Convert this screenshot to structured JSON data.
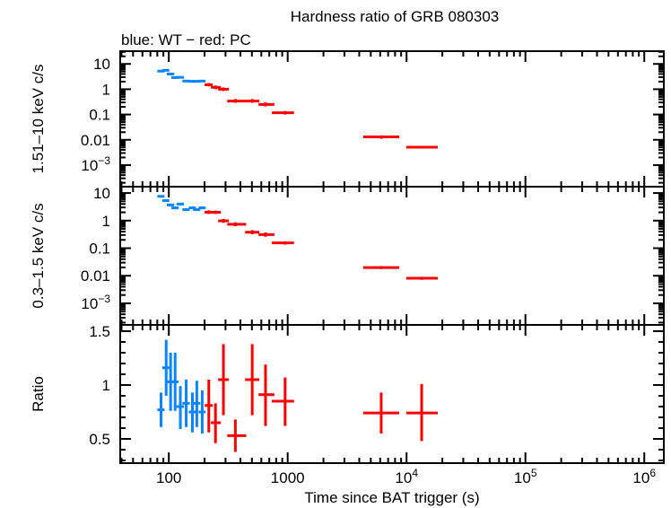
{
  "title": "Hardness ratio of GRB 080303",
  "subtitle": "blue: WT − red: PC",
  "colors": {
    "WT": "#0a84ff",
    "PC": "#ff0000",
    "axes": "#000000"
  },
  "chart_data": [
    {
      "type": "scatter",
      "ylabel": "1.51–10 keV c/s",
      "yscale": "log",
      "ylim": [
        0.00014,
        32
      ],
      "xscale": "log",
      "xlim": [
        39,
        1460000
      ],
      "yticks": [
        10,
        1,
        0.1,
        0.01,
        0.001
      ],
      "ytick_labels": [
        "10",
        "1",
        "0.1",
        "0.01",
        "10^−3"
      ],
      "series": [
        {
          "mode": "WT",
          "color": "#0a84ff",
          "points": [
            [
              86,
              80,
              92,
              5.2,
              4.7,
              5.7
            ],
            [
              95,
              88,
              101,
              5.6,
              5.1,
              6.1
            ],
            [
              103.5,
              96,
              111,
              4.0,
              3.6,
              4.4
            ],
            [
              113,
              105,
              121,
              2.9,
              2.6,
              3.2
            ],
            [
              125,
              116,
              134,
              2.95,
              2.7,
              3.2
            ],
            [
              140,
              130,
              150,
              2.1,
              1.9,
              2.3
            ],
            [
              158,
              147,
              169,
              2.05,
              1.85,
              2.25
            ],
            [
              172,
              160,
              184,
              2.05,
              1.85,
              2.25
            ],
            [
              191,
              178,
              204,
              2.1,
              1.9,
              2.3
            ]
          ]
        },
        {
          "mode": "PC",
          "color": "#ff0000",
          "points": [
            [
              217,
              200,
              234,
              1.5,
              1.3,
              1.75
            ],
            [
              247,
              226,
              274,
              1.19,
              1.0,
              1.4
            ],
            [
              288,
              260,
              320,
              1.0,
              0.85,
              1.18
            ],
            [
              363,
              310,
              447,
              0.34,
              0.29,
              0.41
            ],
            [
              503,
              438,
              577,
              0.34,
              0.29,
              0.41
            ],
            [
              651,
              568,
              773,
              0.25,
              0.21,
              0.3
            ],
            [
              951,
              736,
              1130,
              0.117,
              0.1,
              0.137
            ],
            [
              6120,
              4320,
              8670,
              0.013,
              0.011,
              0.015
            ],
            [
              13400,
              9950,
              18300,
              0.0051,
              0.0045,
              0.0058
            ]
          ]
        }
      ]
    },
    {
      "type": "scatter",
      "ylabel": "0.3–1.5 keV c/s",
      "yscale": "log",
      "ylim": [
        0.000165,
        17
      ],
      "xscale": "log",
      "xlim": [
        39,
        1460000
      ],
      "yticks": [
        10,
        1,
        0.1,
        0.01,
        0.001
      ],
      "ytick_labels": [
        "10",
        "1",
        "0.1",
        "0.01",
        "10^−3"
      ],
      "series": [
        {
          "mode": "WT",
          "color": "#0a84ff",
          "points": [
            [
              86,
              80,
              92,
              7.6,
              6.9,
              8.3
            ],
            [
              95,
              88,
              101,
              5.3,
              4.8,
              5.8
            ],
            [
              103.5,
              96,
              111,
              3.7,
              3.3,
              4.1
            ],
            [
              113,
              105,
              121,
              2.9,
              2.6,
              3.2
            ],
            [
              125,
              116,
              134,
              4.0,
              3.6,
              4.4
            ],
            [
              140,
              130,
              150,
              2.5,
              2.25,
              2.75
            ],
            [
              158,
              147,
              169,
              2.9,
              2.6,
              3.2
            ],
            [
              172,
              160,
              184,
              2.5,
              2.25,
              2.75
            ],
            [
              191,
              178,
              204,
              2.9,
              2.6,
              3.2
            ]
          ]
        },
        {
          "mode": "PC",
          "color": "#ff0000",
          "points": [
            [
              217,
              200,
              234,
              2.02,
              1.75,
              2.35
            ],
            [
              247,
              226,
              274,
              2.0,
              1.75,
              2.3
            ],
            [
              288,
              260,
              320,
              0.98,
              0.83,
              1.15
            ],
            [
              363,
              310,
              447,
              0.74,
              0.63,
              0.87
            ],
            [
              503,
              438,
              577,
              0.38,
              0.32,
              0.45
            ],
            [
              651,
              568,
              773,
              0.31,
              0.26,
              0.37
            ],
            [
              951,
              736,
              1130,
              0.155,
              0.135,
              0.178
            ],
            [
              6120,
              4320,
              8670,
              0.0198,
              0.0175,
              0.0225
            ],
            [
              13400,
              9950,
              18300,
              0.0081,
              0.0071,
              0.0092
            ]
          ]
        }
      ]
    },
    {
      "type": "scatter",
      "ylabel": "Ratio",
      "yscale": "linear",
      "ylim": [
        0.275,
        1.558
      ],
      "xscale": "log",
      "xlim": [
        39,
        1460000
      ],
      "xlabel": "Time since BAT trigger (s)",
      "xticks": [
        100,
        1000,
        10000,
        100000,
        1000000
      ],
      "xtick_labels": [
        "100",
        "1000",
        "10^4",
        "10^5",
        "10^6"
      ],
      "yticks": [
        1.5,
        1,
        0.5
      ],
      "ytick_labels": [
        "1.5",
        "1",
        "0.5"
      ],
      "series": [
        {
          "mode": "WT",
          "color": "#0a84ff",
          "points": [
            [
              86,
              80,
              92,
              0.77,
              0.61,
              0.93
            ],
            [
              95,
              88,
              101,
              1.16,
              0.9,
              1.42
            ],
            [
              103.5,
              96,
              111,
              1.03,
              0.76,
              1.3
            ],
            [
              113,
              105,
              121,
              1.03,
              0.76,
              1.3
            ],
            [
              125,
              116,
              134,
              0.8,
              0.59,
              0.99
            ],
            [
              140,
              130,
              150,
              0.83,
              0.61,
              1.05
            ],
            [
              158,
              147,
              169,
              0.75,
              0.56,
              0.93
            ],
            [
              172,
              160,
              184,
              0.83,
              0.61,
              1.04
            ],
            [
              191,
              178,
              204,
              0.75,
              0.55,
              0.95
            ]
          ]
        },
        {
          "mode": "PC",
          "color": "#ff0000",
          "points": [
            [
              217,
              200,
              234,
              0.81,
              0.56,
              1.05
            ],
            [
              247,
              226,
              274,
              0.65,
              0.46,
              0.83
            ],
            [
              288,
              260,
              320,
              1.05,
              0.72,
              1.38
            ],
            [
              363,
              310,
              447,
              0.53,
              0.38,
              0.68
            ],
            [
              503,
              438,
              577,
              1.05,
              0.72,
              1.38
            ],
            [
              651,
              568,
              773,
              0.91,
              0.62,
              1.19
            ],
            [
              951,
              736,
              1130,
              0.85,
              0.62,
              1.07
            ],
            [
              6120,
              4320,
              8670,
              0.74,
              0.55,
              0.93
            ],
            [
              13400,
              9950,
              18300,
              0.74,
              0.48,
              1.01
            ]
          ]
        }
      ]
    }
  ]
}
